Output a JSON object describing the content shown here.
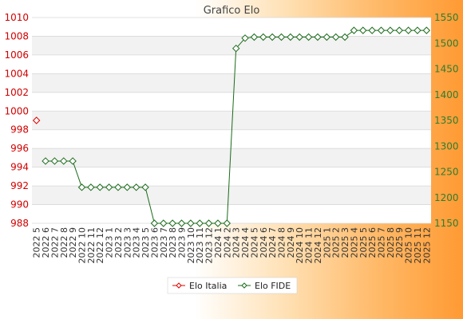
{
  "chart_data": {
    "type": "line",
    "title": "Grafico Elo",
    "categories": [
      "2022 5",
      "2022 6",
      "2022 7",
      "2022 8",
      "2022 9",
      "2022 10",
      "2022 11",
      "2022 12",
      "2023 1",
      "2023 2",
      "2023 3",
      "2023 4",
      "2023 5",
      "2023 6",
      "2023 7",
      "2023 8",
      "2023 9",
      "2023 10",
      "2023 11",
      "2023 12",
      "2024 1",
      "2024 2",
      "2024 3",
      "2024 4",
      "2024 5",
      "2024 6",
      "2024 7",
      "2024 8",
      "2024 9",
      "2024 10",
      "2024 11",
      "2024 12",
      "2025 1",
      "2025 2",
      "2025 3",
      "2025 4",
      "2025 5",
      "2025 6",
      "2025 7",
      "2025 8",
      "2025 9",
      "2025 10",
      "2025 11",
      "2025 12"
    ],
    "y_left": {
      "ylim": [
        988,
        1010
      ],
      "ticks": [
        988,
        990,
        992,
        994,
        996,
        998,
        1000,
        1002,
        1004,
        1006,
        1008,
        1010
      ],
      "color": "#d00000"
    },
    "y_right": {
      "ylim": [
        1150,
        1550
      ],
      "ticks": [
        1150,
        1200,
        1250,
        1300,
        1350,
        1400,
        1450,
        1500,
        1550
      ],
      "color": "#2e7d2e"
    },
    "series": [
      {
        "name": "Elo Italia",
        "axis": "left",
        "color": "#e00000",
        "values": [
          999,
          null,
          null,
          null,
          null,
          null,
          null,
          null,
          null,
          null,
          null,
          null,
          null,
          null,
          null,
          null,
          null,
          null,
          null,
          null,
          null,
          null,
          null,
          null,
          null,
          null,
          null,
          null,
          null,
          null,
          null,
          null,
          null,
          null,
          null,
          null,
          null,
          null,
          null,
          null,
          null,
          null,
          null,
          null
        ]
      },
      {
        "name": "Elo FIDE",
        "axis": "right",
        "color": "#1a6b1a",
        "values": [
          null,
          1271,
          1271,
          1271,
          1271,
          1220,
          1220,
          1220,
          1220,
          1220,
          1220,
          1220,
          1220,
          1150,
          1150,
          1150,
          1150,
          1150,
          1150,
          1150,
          1150,
          1150,
          1490,
          1510,
          1512,
          1512,
          1512,
          1512,
          1512,
          1512,
          1512,
          1512,
          1512,
          1512,
          1512,
          1525,
          1525,
          1525,
          1525,
          1525,
          1525,
          1525,
          1525,
          1525
        ]
      }
    ],
    "grid": true,
    "legend": "bottom-center"
  }
}
